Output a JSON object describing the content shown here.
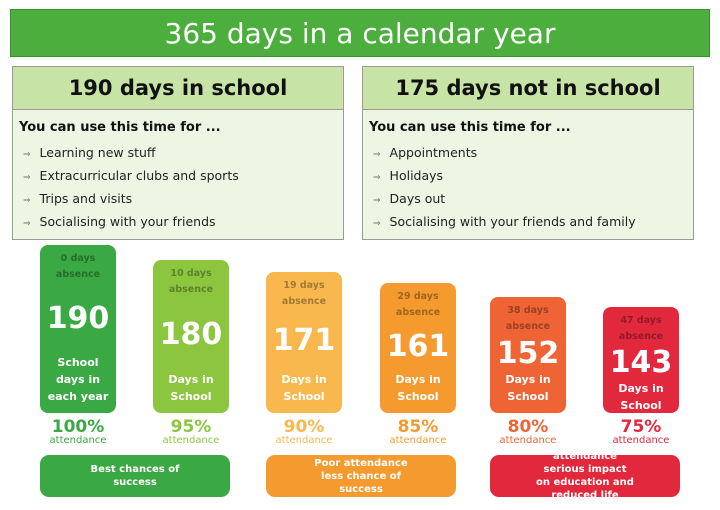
{
  "title": "365 days in a calendar year",
  "panels": [
    {
      "heading": "190 days in school",
      "intro": "You can use this time for ...",
      "items": [
        "Learning new stuff",
        "Extracurricular clubs and sports",
        "Trips and visits",
        "Socialising with your friends"
      ]
    },
    {
      "heading": "175 days not in school",
      "intro": "You can use this time for ...",
      "items": [
        "Appointments",
        "Holidays",
        "Days out",
        "Socialising with your friends and family"
      ]
    }
  ],
  "cards": [
    {
      "absence": "0 days absence",
      "days": "190",
      "label": "School days in each year",
      "percent": "100%",
      "caption": "attendance",
      "color": "#3aa843"
    },
    {
      "absence": "10 days absence",
      "days": "180",
      "label": "Days in School",
      "percent": "95%",
      "caption": "attendance",
      "color": "#8cc63f"
    },
    {
      "absence": "19 days absence",
      "days": "171",
      "label": "Days in School",
      "percent": "90%",
      "caption": "attendance",
      "color": "#f8b84e"
    },
    {
      "absence": "29 days absence",
      "days": "161",
      "label": "Days in School",
      "percent": "85%",
      "caption": "attendance",
      "color": "#f49a2e"
    },
    {
      "absence": "38 days absence",
      "days": "152",
      "label": "Days in School",
      "percent": "80%",
      "caption": "attendance",
      "color": "#ee6435"
    },
    {
      "absence": "47 days absence",
      "days": "143",
      "label": "Days in School",
      "percent": "75%",
      "caption": "attendance",
      "color": "#e2283c"
    }
  ],
  "groups": [
    {
      "text": "Best chances of success",
      "color": "#3aa843"
    },
    {
      "text": "Poor attendance less chance of success",
      "color": "#f49a2e"
    },
    {
      "text": "Very poor attendance serious impact on education and reduced life chances",
      "color": "#e2283c"
    }
  ]
}
